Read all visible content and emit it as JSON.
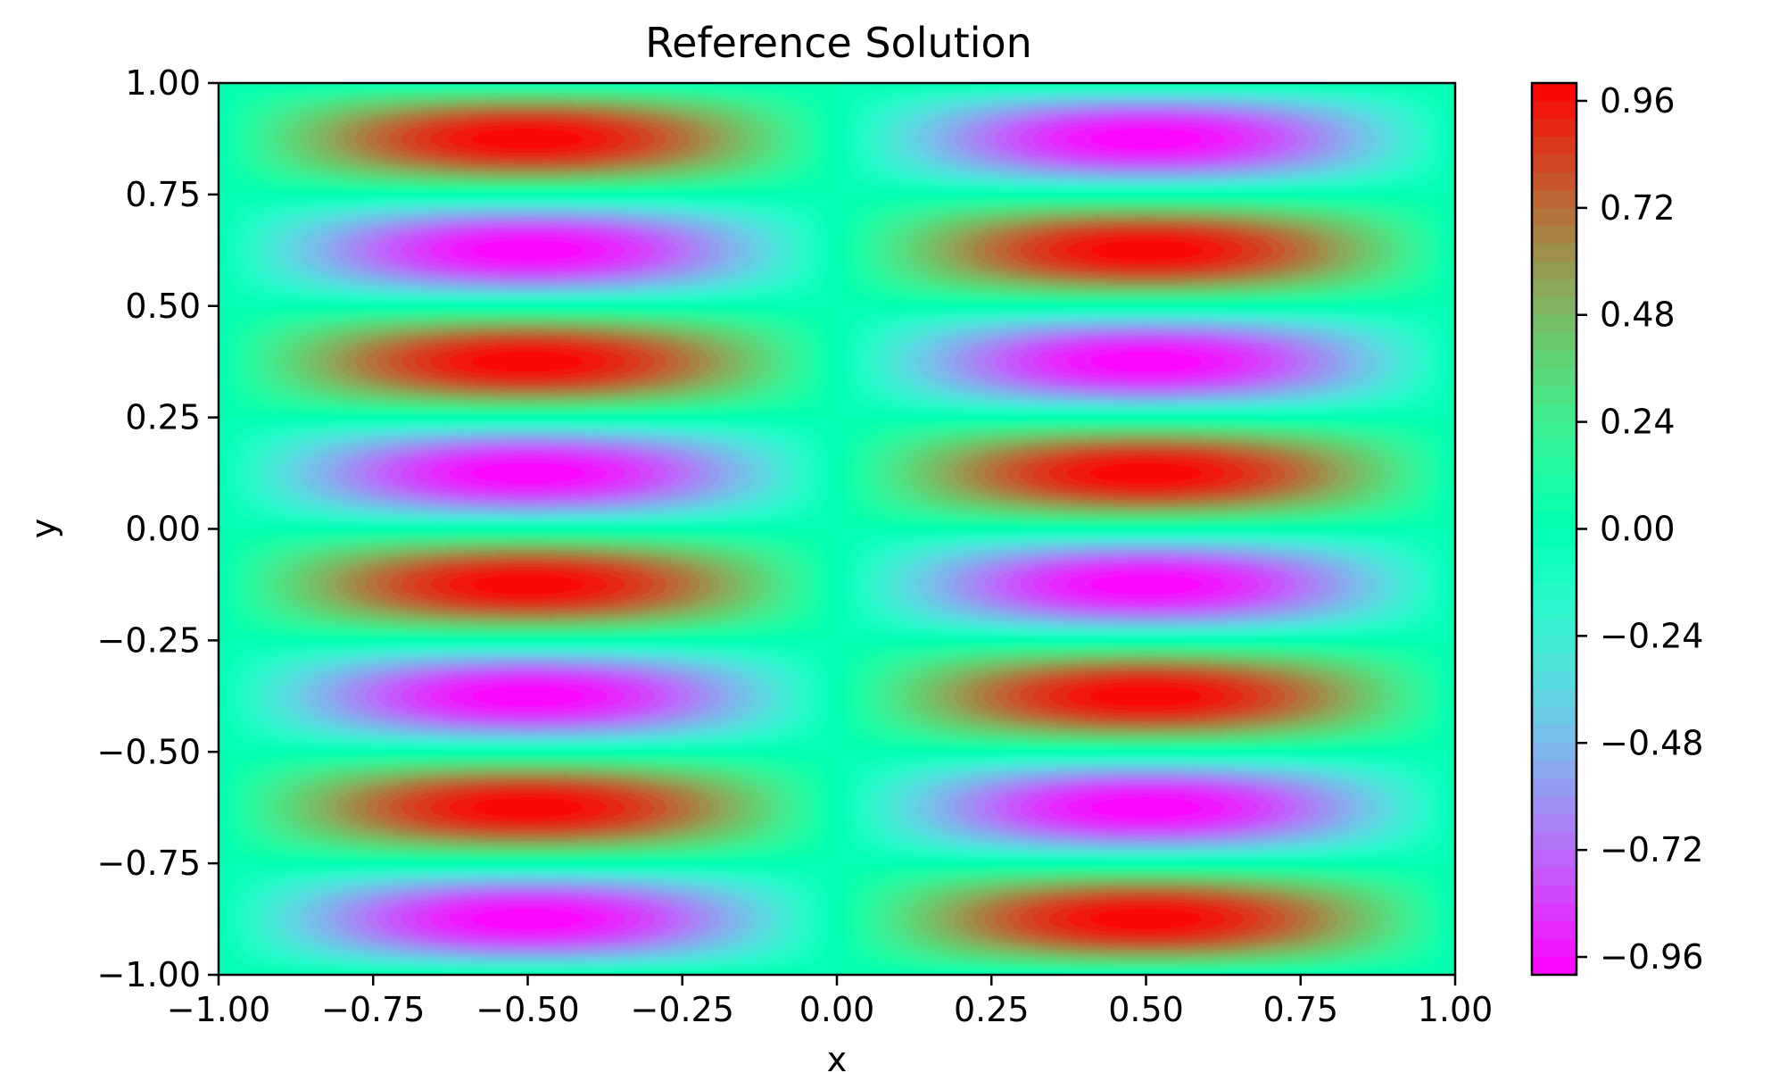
{
  "chart_data": {
    "type": "heatmap",
    "title": "Reference Solution",
    "xlabel": "x",
    "ylabel": "y",
    "xlim": [
      -1.0,
      1.0
    ],
    "ylim": [
      -1.0,
      1.0
    ],
    "x_ticks": [
      -1.0,
      -0.75,
      -0.5,
      -0.25,
      0.0,
      0.25,
      0.5,
      0.75,
      1.0
    ],
    "x_tick_labels": [
      "−1.00",
      "−0.75",
      "−0.50",
      "−0.25",
      "0.00",
      "0.25",
      "0.50",
      "0.75",
      "1.00"
    ],
    "y_ticks": [
      1.0,
      0.75,
      0.5,
      0.25,
      0.0,
      -0.25,
      -0.5,
      -0.75,
      -1.0
    ],
    "y_tick_labels": [
      "1.00",
      "0.75",
      "0.50",
      "0.25",
      "0.00",
      "−0.25",
      "−0.50",
      "−0.75",
      "−1.00"
    ],
    "function": "u(x, y) = sin(pi*x) * sin(4*pi*y)",
    "colormap": "rainbow",
    "colorbar": {
      "range": [
        -1.0,
        1.0
      ],
      "ticks": [
        0.96,
        0.72,
        0.48,
        0.24,
        0.0,
        -0.24,
        -0.48,
        -0.72,
        -0.96
      ],
      "tick_labels": [
        "0.96",
        "0.72",
        "0.48",
        "0.24",
        "0.00",
        "−0.24",
        "−0.48",
        "−0.72",
        "−0.96"
      ],
      "placement": "right"
    },
    "grid": false
  }
}
